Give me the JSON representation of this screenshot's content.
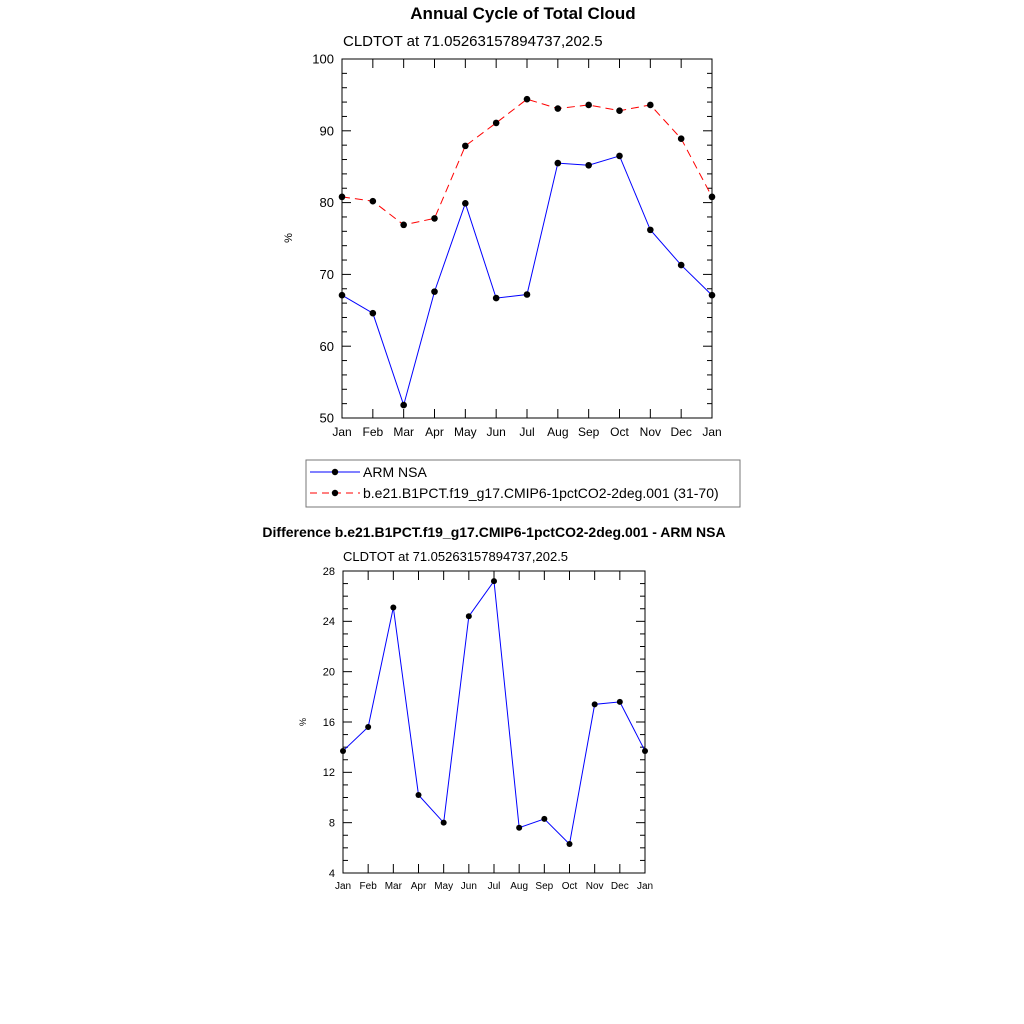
{
  "chart_data": [
    {
      "type": "line",
      "title": "Annual Cycle of Total Cloud",
      "subtitle": "CLDTOT at 71.05263157894737,202.5",
      "xlabel": "",
      "ylabel": "%",
      "categories": [
        "Jan",
        "Feb",
        "Mar",
        "Apr",
        "May",
        "Jun",
        "Jul",
        "Aug",
        "Sep",
        "Oct",
        "Nov",
        "Dec",
        "Jan"
      ],
      "ylim": [
        50,
        100
      ],
      "yticks": [
        50,
        60,
        70,
        80,
        90,
        100
      ],
      "yminor_step": 2,
      "grid": false,
      "legend": "bottom",
      "series": [
        {
          "name": "ARM NSA",
          "color": "#0000ff",
          "dash": "solid",
          "values": [
            67.1,
            64.6,
            51.8,
            67.6,
            79.9,
            66.7,
            67.2,
            85.5,
            85.2,
            86.5,
            76.2,
            71.3,
            67.1
          ]
        },
        {
          "name": "b.e21.B1PCT.f19_g17.CMIP6-1pctCO2-2deg.001 (31-70)",
          "color": "#ff0000",
          "dash": "dashed",
          "values": [
            80.8,
            80.2,
            76.9,
            77.8,
            87.9,
            91.1,
            94.4,
            93.1,
            93.6,
            92.8,
            93.6,
            88.9,
            80.8
          ]
        }
      ]
    },
    {
      "type": "line",
      "title": "Difference b.e21.B1PCT.f19_g17.CMIP6-1pctCO2-2deg.001 - ARM NSA",
      "subtitle": "CLDTOT at 71.05263157894737,202.5",
      "xlabel": "",
      "ylabel": "%",
      "categories": [
        "Jan",
        "Feb",
        "Mar",
        "Apr",
        "May",
        "Jun",
        "Jul",
        "Aug",
        "Sep",
        "Oct",
        "Nov",
        "Dec",
        "Jan"
      ],
      "ylim": [
        4,
        28
      ],
      "yticks": [
        4,
        8,
        12,
        16,
        20,
        24,
        28
      ],
      "yminor_step": 1,
      "grid": false,
      "series": [
        {
          "name": "Difference",
          "color": "#0000ff",
          "dash": "solid",
          "values": [
            13.7,
            15.6,
            25.1,
            10.2,
            8.0,
            24.4,
            27.2,
            7.6,
            8.3,
            6.3,
            17.4,
            17.6,
            13.7
          ]
        }
      ]
    }
  ]
}
